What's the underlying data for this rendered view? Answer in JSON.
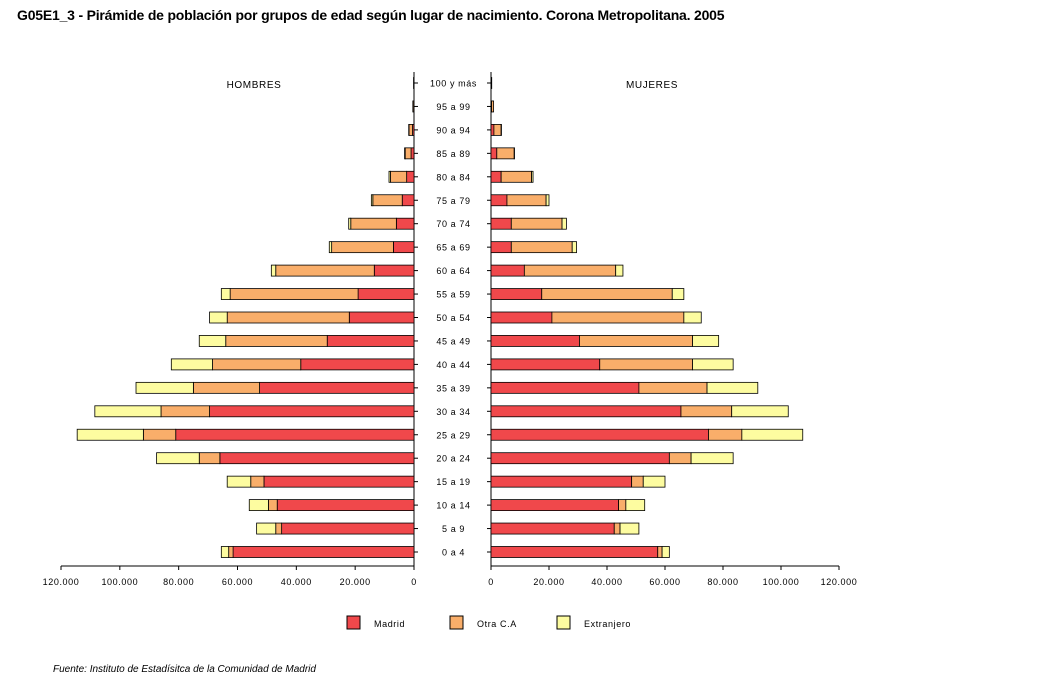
{
  "title": "G05E1_3 - Pirámide de población por grupos de edad según lugar de nacimiento. Corona Metropolitana.  2005",
  "source": "Fuente: Instituto de Estadísitca de la Comunidad de Madrid",
  "colors": {
    "Madrid": "#f0484b",
    "Otra C.A": "#f9ae6a",
    "Extranjero": "#fdfca0"
  },
  "chart_data": {
    "type": "bar",
    "subtype": "population-pyramid-stacked",
    "panel_labels": {
      "left": "HOMBRES",
      "right": "MUJERES"
    },
    "categories": [
      "0 a 4",
      "5 a 9",
      "10 a 14",
      "15 a 19",
      "20 a 24",
      "25 a 29",
      "30 a 34",
      "35 a 39",
      "40 a  44",
      "45 a 49",
      "50 a 54",
      "55 a 59",
      "60 a 64",
      "65 a 69",
      "70 a 74",
      "75 a 79",
      "80 a 84",
      "85 a 89",
      "90 a 94",
      "95 a 99",
      "100 y más"
    ],
    "hombres": [
      {
        "name": "Madrid",
        "values": [
          61500,
          45000,
          46500,
          51000,
          66000,
          81000,
          69500,
          52500,
          38500,
          29500,
          22000,
          19000,
          13500,
          7000,
          6000,
          4000,
          2500,
          1000,
          500,
          100,
          50
        ]
      },
      {
        "name": "Otra C.A",
        "values": [
          1500,
          2000,
          3000,
          4500,
          7000,
          11000,
          16500,
          22500,
          30000,
          34500,
          41500,
          43500,
          33500,
          21000,
          15500,
          10000,
          5500,
          2000,
          1200,
          300,
          100
        ]
      },
      {
        "name": "Extranjero",
        "values": [
          2500,
          6500,
          6500,
          8000,
          14500,
          22500,
          22500,
          19500,
          14000,
          9000,
          6000,
          3000,
          1500,
          800,
          700,
          500,
          500,
          200,
          100,
          0,
          0
        ]
      }
    ],
    "mujeres": [
      {
        "name": "Madrid",
        "values": [
          57500,
          42500,
          44000,
          48500,
          61500,
          75000,
          65500,
          51000,
          37500,
          30500,
          21000,
          17500,
          11500,
          7000,
          7000,
          5500,
          3500,
          2000,
          1000,
          200,
          100
        ]
      },
      {
        "name": "Otra C.A",
        "values": [
          1500,
          2000,
          2500,
          4000,
          7500,
          11500,
          17500,
          23500,
          32000,
          39000,
          45500,
          45000,
          31500,
          21000,
          17500,
          13500,
          10500,
          6000,
          2500,
          700,
          150
        ]
      },
      {
        "name": "Extranjero",
        "values": [
          2500,
          6500,
          6500,
          7500,
          14500,
          21000,
          19500,
          17500,
          14000,
          9000,
          6000,
          4000,
          2500,
          1500,
          1500,
          1000,
          500,
          100,
          100,
          0,
          0
        ]
      }
    ],
    "xlim": [
      0,
      120000
    ],
    "left_ticks": [
      "120.000",
      "100.000",
      "80.000",
      "60.000",
      "40.000",
      "20.000",
      "0"
    ],
    "right_ticks": [
      "0",
      "20.000",
      "40.000",
      "60.000",
      "80.000",
      "100.000",
      "120.000"
    ],
    "tick_values": [
      0,
      20000,
      40000,
      60000,
      80000,
      100000,
      120000
    ],
    "legend": [
      "Madrid",
      "Otra C.A",
      "Extranjero"
    ],
    "legend_position": "bottom-center",
    "grid": false
  }
}
